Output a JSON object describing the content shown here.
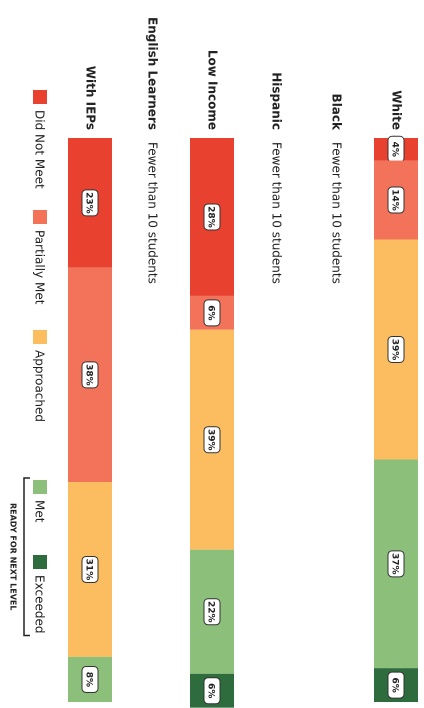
{
  "chart_data": {
    "type": "bar",
    "stacked": true,
    "orientation": "horizontal",
    "categories": [
      "White",
      "Black",
      "Hispanic",
      "Low Income",
      "English Learners",
      "With IEPs"
    ],
    "category_notes": [
      null,
      "Fewer than 10 students",
      "Fewer than 10 students",
      null,
      "Fewer than 10 students",
      null
    ],
    "xlim": [
      0,
      100
    ],
    "series": [
      {
        "name": "Did Not Meet",
        "color": "#e8412f",
        "values": [
          4,
          null,
          null,
          28,
          null,
          23
        ],
        "value_labels": [
          "4%",
          null,
          null,
          "28%",
          null,
          "23%"
        ]
      },
      {
        "name": "Partially Met",
        "color": "#f3735a",
        "values": [
          14,
          null,
          null,
          6,
          null,
          38
        ],
        "value_labels": [
          "14%",
          null,
          null,
          "6%",
          null,
          "38%"
        ]
      },
      {
        "name": "Approached",
        "color": "#fbbd5f",
        "values": [
          39,
          null,
          null,
          39,
          null,
          31
        ],
        "value_labels": [
          "39%",
          null,
          null,
          "39%",
          null,
          "31%"
        ]
      },
      {
        "name": "Met",
        "color": "#8cbf7a",
        "values": [
          37,
          null,
          null,
          22,
          null,
          8
        ],
        "value_labels": [
          "37%",
          null,
          null,
          "22%",
          null,
          "8%"
        ]
      },
      {
        "name": "Exceeded",
        "color": "#2e6b3d",
        "values": [
          6,
          null,
          null,
          6,
          null,
          null
        ],
        "value_labels": [
          "6%",
          null,
          null,
          "6%",
          null,
          null
        ]
      }
    ],
    "legend_group_label": "READY FOR NEXT LEVEL"
  }
}
